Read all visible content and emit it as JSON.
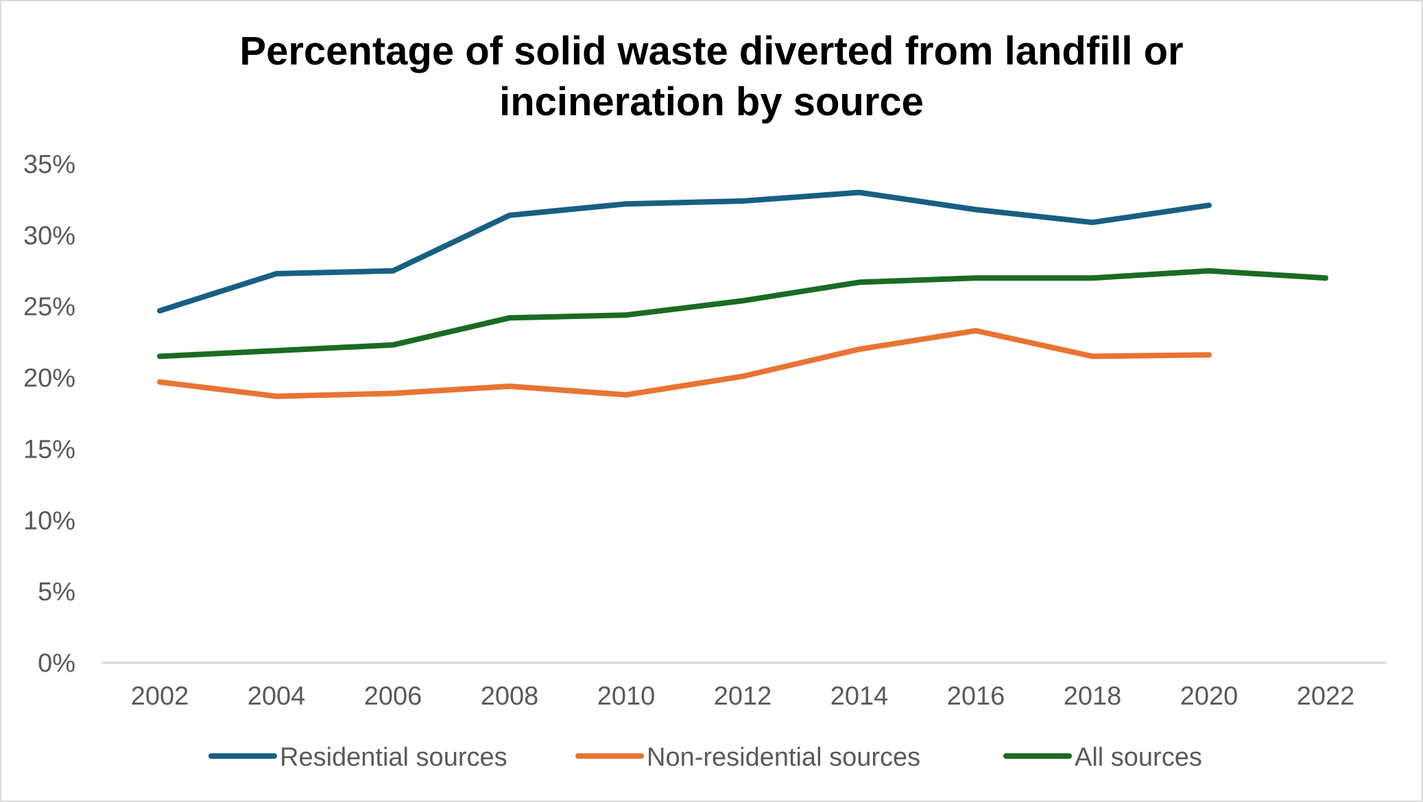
{
  "chart_data": {
    "type": "line",
    "title": "Percentage of solid waste diverted from landfill or incineration by source",
    "title_lines": [
      "Percentage of solid waste diverted from landfill or",
      "incineration by source"
    ],
    "xlabel": "",
    "ylabel": "",
    "categories": [
      "2002",
      "2004",
      "2006",
      "2008",
      "2010",
      "2012",
      "2014",
      "2016",
      "2018",
      "2020",
      "2022"
    ],
    "ylim": [
      0,
      35
    ],
    "yticks": [
      0,
      5,
      10,
      15,
      20,
      25,
      30,
      35
    ],
    "ytick_labels": [
      "0%",
      "5%",
      "10%",
      "15%",
      "20%",
      "25%",
      "30%",
      "35%"
    ],
    "grid": false,
    "legend_position": "bottom",
    "series": [
      {
        "name": "Residential sources",
        "color": "#185f83",
        "values": [
          24.7,
          27.3,
          27.5,
          31.4,
          32.2,
          32.4,
          33.0,
          31.8,
          30.9,
          32.1,
          null
        ]
      },
      {
        "name": "Non-residential sources",
        "color": "#e87432",
        "values": [
          19.7,
          18.7,
          18.9,
          19.4,
          18.8,
          20.1,
          22.0,
          23.3,
          21.5,
          21.6,
          null
        ]
      },
      {
        "name": "All sources",
        "color": "#1a6b24",
        "values": [
          21.5,
          21.9,
          22.3,
          24.2,
          24.4,
          25.4,
          26.7,
          27.0,
          27.0,
          27.5,
          27.0
        ]
      }
    ]
  }
}
